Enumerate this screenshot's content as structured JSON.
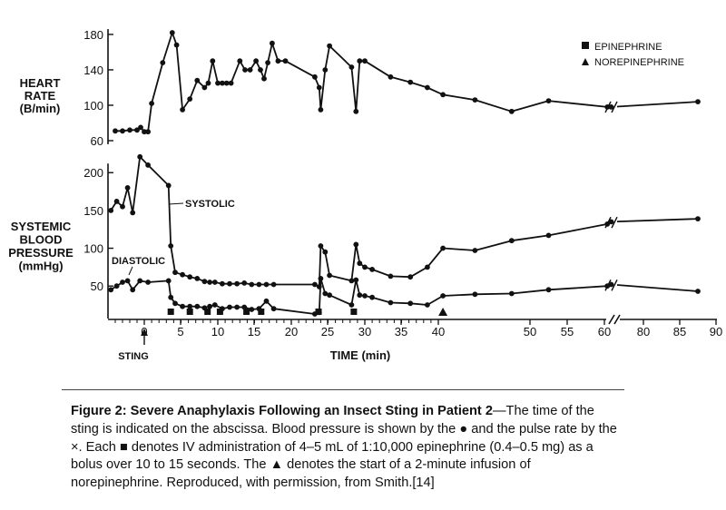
{
  "chart_data": {
    "type": "line",
    "xlabel": "TIME (min)",
    "x_ticks": [
      "0",
      "5",
      "10",
      "15",
      "20",
      "25",
      "30",
      "35",
      "40",
      "50",
      "55",
      "60",
      "80",
      "85",
      "90"
    ],
    "x_axis_break": true,
    "annotation_sting": "STING",
    "legend": {
      "placement": "top-right",
      "epinephrine": "EPINEPHRINE",
      "norepinephrine": "NOREPINEPHRINE"
    },
    "heart_rate": {
      "ylabel": [
        "HEART",
        "RATE",
        "(B/min)"
      ],
      "y_ticks": [
        60,
        100,
        140,
        180
      ],
      "ylim": [
        56,
        186
      ],
      "points": [
        [
          -4,
          71
        ],
        [
          -3,
          71
        ],
        [
          -2,
          72
        ],
        [
          -1,
          72
        ],
        [
          -0.5,
          75
        ],
        [
          0,
          70
        ],
        [
          0.5,
          70
        ],
        [
          1,
          102
        ],
        [
          2.5,
          148
        ],
        [
          3.8,
          182
        ],
        [
          4.4,
          168
        ],
        [
          5.2,
          95
        ],
        [
          6.2,
          107
        ],
        [
          7.2,
          128
        ],
        [
          8.2,
          120
        ],
        [
          8.7,
          125
        ],
        [
          9.3,
          150
        ],
        [
          10,
          125
        ],
        [
          10.6,
          125
        ],
        [
          11.2,
          125
        ],
        [
          11.8,
          125
        ],
        [
          13,
          150
        ],
        [
          13.7,
          140
        ],
        [
          14.4,
          140
        ],
        [
          15.2,
          150
        ],
        [
          15.8,
          140
        ],
        [
          16.3,
          130
        ],
        [
          16.8,
          148
        ],
        [
          17.4,
          170
        ],
        [
          18.2,
          150
        ],
        [
          19.2,
          150
        ],
        [
          23.2,
          132
        ],
        [
          23.8,
          120
        ],
        [
          24,
          95
        ],
        [
          24.6,
          140
        ],
        [
          25.2,
          167
        ],
        [
          28.2,
          143
        ],
        [
          28.8,
          93
        ],
        [
          29.3,
          150
        ],
        [
          30,
          150
        ],
        [
          33.5,
          132
        ],
        [
          36.2,
          126
        ],
        [
          38.5,
          120
        ],
        [
          40.5,
          112
        ],
        [
          44,
          106
        ],
        [
          48,
          93
        ],
        [
          52.5,
          105
        ],
        [
          61.5,
          98
        ],
        [
          63.5,
          98
        ],
        [
          87.5,
          104
        ]
      ]
    },
    "systolic": {
      "ylabel": [
        "SYSTEMIC",
        "BLOOD",
        "PRESSURE",
        "(mmHg)"
      ],
      "y_ticks": [
        50,
        100,
        150,
        200
      ],
      "ylim": [
        7,
        212
      ],
      "label": "SYSTOLIC",
      "points": [
        [
          -4.6,
          150
        ],
        [
          -3.8,
          162
        ],
        [
          -3,
          155
        ],
        [
          -2.3,
          180
        ],
        [
          -1.6,
          147
        ],
        [
          -0.6,
          221
        ],
        [
          0.5,
          210
        ],
        [
          3.3,
          183
        ],
        [
          3.6,
          103
        ],
        [
          4.2,
          68
        ],
        [
          5.2,
          65
        ],
        [
          6.2,
          62
        ],
        [
          7.2,
          60
        ],
        [
          8.2,
          56
        ],
        [
          8.9,
          55
        ],
        [
          9.6,
          55
        ],
        [
          10.6,
          53
        ],
        [
          11.6,
          53
        ],
        [
          12.6,
          53
        ],
        [
          13.6,
          54
        ],
        [
          14.6,
          52
        ],
        [
          15.6,
          52
        ],
        [
          16.6,
          52
        ],
        [
          17.6,
          52
        ],
        [
          23.2,
          52
        ],
        [
          23.8,
          49
        ],
        [
          24,
          103
        ],
        [
          24.6,
          95
        ],
        [
          25.2,
          64
        ],
        [
          28.2,
          57
        ],
        [
          28.8,
          105
        ],
        [
          29.3,
          80
        ],
        [
          30,
          75
        ],
        [
          31,
          72
        ],
        [
          33.5,
          63
        ],
        [
          36.2,
          62
        ],
        [
          38.5,
          75
        ],
        [
          40.5,
          100
        ],
        [
          44,
          97
        ],
        [
          48,
          110
        ],
        [
          52.5,
          117
        ],
        [
          61.5,
          132
        ],
        [
          63.5,
          135
        ],
        [
          87.5,
          139
        ]
      ]
    },
    "diastolic": {
      "label": "DIASTOLIC",
      "points": [
        [
          -4.6,
          45
        ],
        [
          -3.8,
          50
        ],
        [
          -3,
          55
        ],
        [
          -2.3,
          57
        ],
        [
          -1.6,
          45
        ],
        [
          -0.6,
          57
        ],
        [
          0.5,
          55
        ],
        [
          3.3,
          57
        ],
        [
          3.6,
          35
        ],
        [
          4.2,
          27
        ],
        [
          5.2,
          23
        ],
        [
          6.2,
          23
        ],
        [
          7.2,
          23
        ],
        [
          8.2,
          21
        ],
        [
          8.9,
          23
        ],
        [
          9.6,
          25
        ],
        [
          10.6,
          20
        ],
        [
          11.6,
          22
        ],
        [
          12.6,
          22
        ],
        [
          13.6,
          22
        ],
        [
          14.6,
          19
        ],
        [
          15.6,
          20
        ],
        [
          16.6,
          30
        ],
        [
          17.6,
          20
        ],
        [
          23.2,
          13
        ],
        [
          23.8,
          15
        ],
        [
          24,
          60
        ],
        [
          24.6,
          40
        ],
        [
          25.2,
          38
        ],
        [
          28.2,
          25
        ],
        [
          28.8,
          58
        ],
        [
          29.3,
          38
        ],
        [
          30,
          37
        ],
        [
          31,
          35
        ],
        [
          33.5,
          28
        ],
        [
          36.2,
          27
        ],
        [
          38.5,
          25
        ],
        [
          40.5,
          37
        ],
        [
          44,
          39
        ],
        [
          48,
          40
        ],
        [
          52.5,
          45
        ],
        [
          61.5,
          50
        ],
        [
          63.5,
          52
        ],
        [
          87.5,
          43
        ]
      ]
    },
    "epinephrine_doses": [
      3.6,
      6.2,
      8.6,
      10.3,
      13.9,
      15.9,
      23.7,
      28.5
    ],
    "norepinephrine_start": [
      40.5
    ]
  },
  "caption": {
    "title": "Figure 2: Severe Anaphylaxis Following an Insect Sting in Patient 2",
    "text_1": "—The time of the sting is indicated on the abscissa. Blood pressure is shown by the ",
    "circle_glyph": "●",
    "text_2": " and the pulse rate by the ×. Each ",
    "square_glyph": "■",
    "text_3": " denotes IV administration of 4–5 mL of 1:10,000 epinephrine (0.4–0.5 mg) as a bolus over 10 to 15 seconds. The ",
    "triangle_glyph": "▲",
    "text_4": " denotes the start of a 2-minute infusion of norepinephrine. Reproduced, with permission, from Smith.[14]"
  }
}
